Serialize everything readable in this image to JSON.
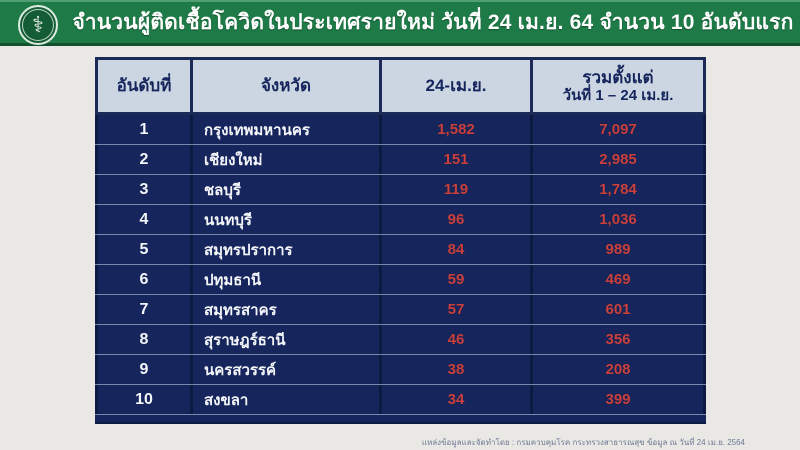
{
  "page": {
    "title": "จำนวนผู้ติดเชื้อโควิดในประเทศรายใหม่ วันที่ 24 เม.ย. 64 จำนวน 10 อันดับแรก",
    "logo_icon": "⚕",
    "caption": "แหล่งข้อมูลและจัดทำโดย : กรมควบคุมโรค กระทรวงสาธารณสุข ข้อมูล ณ วันที่ 24 เม.ย. 2564"
  },
  "colors": {
    "title_bar_green": "#1e7b47",
    "table_navy": "#16265c",
    "header_cell_blue": "#ccd6e3",
    "value_red": "#c9403f",
    "page_background": "#e9e8e4"
  },
  "table": {
    "headers": {
      "rank": "อันดับที่",
      "province": "จังหวัด",
      "daily": "24-เม.ย.",
      "total_line1": "รวมตั้งแต่",
      "total_line2": "วันที่ 1 – 24 เม.ย."
    },
    "rows": [
      {
        "rank": "1",
        "province": "กรุงเทพมหานคร",
        "daily": "1,582",
        "total": "7,097"
      },
      {
        "rank": "2",
        "province": "เชียงใหม่",
        "daily": "151",
        "total": "2,985"
      },
      {
        "rank": "3",
        "province": "ชลบุรี",
        "daily": "119",
        "total": "1,784"
      },
      {
        "rank": "4",
        "province": "นนทบุรี",
        "daily": "96",
        "total": "1,036"
      },
      {
        "rank": "5",
        "province": "สมุทรปราการ",
        "daily": "84",
        "total": "989"
      },
      {
        "rank": "6",
        "province": "ปทุมธานี",
        "daily": "59",
        "total": "469"
      },
      {
        "rank": "7",
        "province": "สมุทรสาคร",
        "daily": "57",
        "total": "601"
      },
      {
        "rank": "8",
        "province": "สุราษฎร์ธานี",
        "daily": "46",
        "total": "356"
      },
      {
        "rank": "9",
        "province": "นครสวรรค์",
        "daily": "38",
        "total": "208"
      },
      {
        "rank": "10",
        "province": "สงขลา",
        "daily": "34",
        "total": "399"
      }
    ]
  },
  "chart_data": {
    "type": "table",
    "title": "จำนวนผู้ติดเชื้อโควิดในประเทศรายใหม่ วันที่ 24 เม.ย. 64 จำนวน 10 อันดับแรก",
    "columns": [
      "อันดับที่",
      "จังหวัด",
      "24-เม.ย.",
      "รวมตั้งแต่วันที่ 1 – 24 เม.ย."
    ],
    "rows": [
      [
        1,
        "กรุงเทพมหานคร",
        1582,
        7097
      ],
      [
        2,
        "เชียงใหม่",
        151,
        2985
      ],
      [
        3,
        "ชลบุรี",
        119,
        1784
      ],
      [
        4,
        "นนทบุรี",
        96,
        1036
      ],
      [
        5,
        "สมุทรปราการ",
        84,
        989
      ],
      [
        6,
        "ปทุมธานี",
        59,
        469
      ],
      [
        7,
        "สมุทรสาคร",
        57,
        601
      ],
      [
        8,
        "สุราษฎร์ธานี",
        46,
        356
      ],
      [
        9,
        "นครสวรรค์",
        38,
        208
      ],
      [
        10,
        "สงขลา",
        34,
        399
      ]
    ]
  }
}
